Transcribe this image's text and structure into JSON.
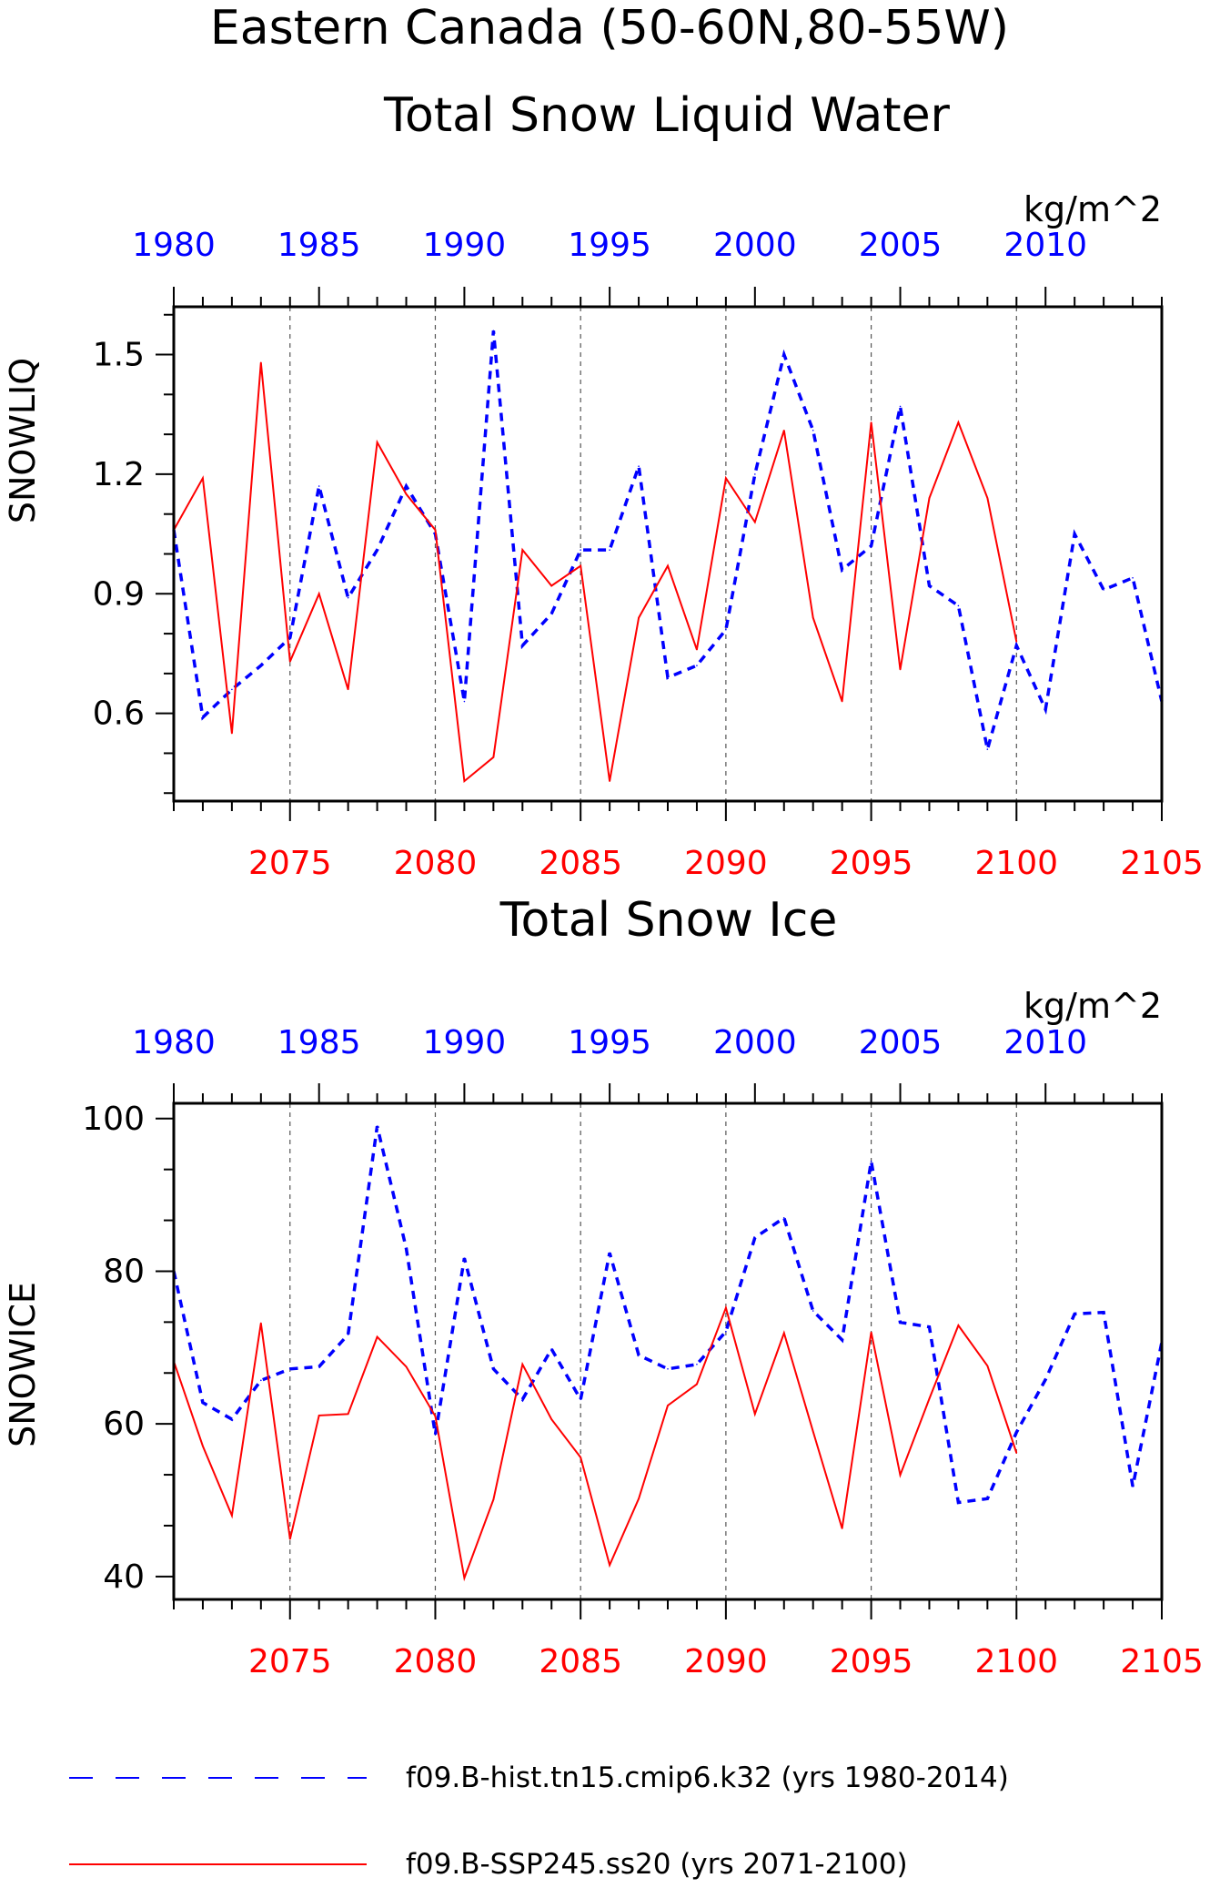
{
  "title_line1": "Eastern Canada (50-60N,80-55W)",
  "colors": {
    "hist": "#0000ff",
    "ssp": "#ff0000",
    "axis": "#000000",
    "grid": "#555555"
  },
  "legend": {
    "hist_label": "f09.B-hist.tn15.cmip6.k32 (yrs 1980-2014)",
    "ssp_label": "f09.B-SSP245.ss20 (yrs 2071-2100)"
  },
  "chart_data": [
    {
      "type": "line",
      "title": "Total Snow Liquid Water",
      "units": "kg/m^2",
      "ylabel": "SNOWLIQ",
      "ylim": [
        0.38,
        1.62
      ],
      "yticks": [
        0.6,
        0.9,
        1.2,
        1.5
      ],
      "ytick_labels": [
        "0.6",
        "0.9",
        "1.2",
        "1.5"
      ],
      "bottom_axis": {
        "range": [
          2071,
          2105
        ],
        "ticks": [
          2075,
          2080,
          2085,
          2090,
          2095,
          2100,
          2105
        ],
        "labels": [
          "2075",
          "2080",
          "2085",
          "2090",
          "2095",
          "2100",
          "2105"
        ]
      },
      "top_axis": {
        "range": [
          1980,
          2014
        ],
        "ticks": [
          1980,
          1985,
          1990,
          1995,
          2000,
          2005,
          2010
        ],
        "labels": [
          "1980",
          "1985",
          "1990",
          "1995",
          "2000",
          "2005",
          "2010"
        ]
      },
      "series": [
        {
          "name": "f09.B-hist.tn15.cmip6.k32 (yrs 1980-2014)",
          "axis": "top",
          "style": "dashed",
          "color": "#0000ff",
          "x": [
            1980,
            1981,
            1982,
            1983,
            1984,
            1985,
            1986,
            1987,
            1988,
            1989,
            1990,
            1991,
            1992,
            1993,
            1994,
            1995,
            1996,
            1997,
            1998,
            1999,
            2000,
            2001,
            2002,
            2003,
            2004,
            2005,
            2006,
            2007,
            2008,
            2009,
            2010,
            2011,
            2012,
            2013,
            2014
          ],
          "values": [
            1.06,
            0.59,
            0.66,
            0.72,
            0.79,
            1.17,
            0.89,
            1.01,
            1.17,
            1.05,
            0.63,
            1.56,
            0.77,
            0.85,
            1.01,
            1.01,
            1.22,
            0.69,
            0.72,
            0.81,
            1.2,
            1.5,
            1.31,
            0.96,
            1.02,
            1.37,
            0.92,
            0.87,
            0.51,
            0.77,
            0.61,
            1.05,
            0.91,
            0.94,
            0.63
          ]
        },
        {
          "name": "f09.B-SSP245.ss20 (yrs 2071-2100)",
          "axis": "bottom",
          "style": "solid",
          "color": "#ff0000",
          "x": [
            2071,
            2072,
            2073,
            2074,
            2075,
            2076,
            2077,
            2078,
            2079,
            2080,
            2081,
            2082,
            2083,
            2084,
            2085,
            2086,
            2087,
            2088,
            2089,
            2090,
            2091,
            2092,
            2093,
            2094,
            2095,
            2096,
            2097,
            2098,
            2099,
            2100
          ],
          "values": [
            1.06,
            1.19,
            0.55,
            1.48,
            0.73,
            0.9,
            0.66,
            1.28,
            1.15,
            1.06,
            0.43,
            0.49,
            1.01,
            0.92,
            0.97,
            0.43,
            0.84,
            0.97,
            0.76,
            1.19,
            1.08,
            1.31,
            0.84,
            0.63,
            1.33,
            0.71,
            1.14,
            1.33,
            1.14,
            0.78
          ]
        }
      ]
    },
    {
      "type": "line",
      "title": "Total Snow Ice",
      "units": "kg/m^2",
      "ylabel": "SNOWICE",
      "ylim": [
        37,
        102
      ],
      "yticks": [
        40,
        60,
        80,
        100
      ],
      "ytick_labels": [
        "40",
        "60",
        "80",
        "100"
      ],
      "bottom_axis": {
        "range": [
          2071,
          2105
        ],
        "ticks": [
          2075,
          2080,
          2085,
          2090,
          2095,
          2100,
          2105
        ],
        "labels": [
          "2075",
          "2080",
          "2085",
          "2090",
          "2095",
          "2100",
          "2105"
        ]
      },
      "top_axis": {
        "range": [
          1980,
          2014
        ],
        "ticks": [
          1980,
          1985,
          1990,
          1995,
          2000,
          2005,
          2010
        ],
        "labels": [
          "1980",
          "1985",
          "1990",
          "1995",
          "2000",
          "2005",
          "2010"
        ]
      },
      "series": [
        {
          "name": "f09.B-hist.tn15.cmip6.k32 (yrs 1980-2014)",
          "axis": "top",
          "style": "dashed",
          "color": "#0000ff",
          "x": [
            1980,
            1981,
            1982,
            1983,
            1984,
            1985,
            1986,
            1987,
            1988,
            1989,
            1990,
            1991,
            1992,
            1993,
            1994,
            1995,
            1996,
            1997,
            1998,
            1999,
            2000,
            2001,
            2002,
            2003,
            2004,
            2005,
            2006,
            2007,
            2008,
            2009,
            2010,
            2011,
            2012,
            2013,
            2014
          ],
          "values": [
            80.0,
            62.8,
            60.6,
            65.7,
            67.2,
            67.5,
            71.7,
            99.0,
            83.0,
            58.6,
            81.7,
            67.2,
            63.2,
            69.8,
            63.2,
            82.4,
            69.0,
            67.2,
            67.8,
            72.1,
            84.4,
            87.0,
            74.8,
            71.0,
            94.4,
            73.3,
            72.7,
            49.7,
            50.2,
            58.9,
            65.8,
            74.4,
            74.6,
            51.8,
            70.7
          ]
        },
        {
          "name": "f09.B-SSP245.ss20 (yrs 2071-2100)",
          "axis": "bottom",
          "style": "solid",
          "color": "#ff0000",
          "x": [
            2071,
            2072,
            2073,
            2074,
            2075,
            2076,
            2077,
            2078,
            2079,
            2080,
            2081,
            2082,
            2083,
            2084,
            2085,
            2086,
            2087,
            2088,
            2089,
            2090,
            2091,
            2092,
            2093,
            2094,
            2095,
            2096,
            2097,
            2098,
            2099,
            2100
          ],
          "values": [
            68.2,
            57.1,
            48.0,
            73.2,
            44.9,
            61.1,
            61.3,
            71.4,
            67.5,
            61.0,
            39.8,
            50.1,
            67.8,
            60.6,
            55.6,
            41.5,
            50.2,
            62.4,
            65.2,
            75.2,
            61.3,
            71.9,
            59.0,
            46.3,
            72.0,
            53.3,
            63.3,
            72.9,
            67.6,
            56.2
          ]
        }
      ]
    }
  ]
}
